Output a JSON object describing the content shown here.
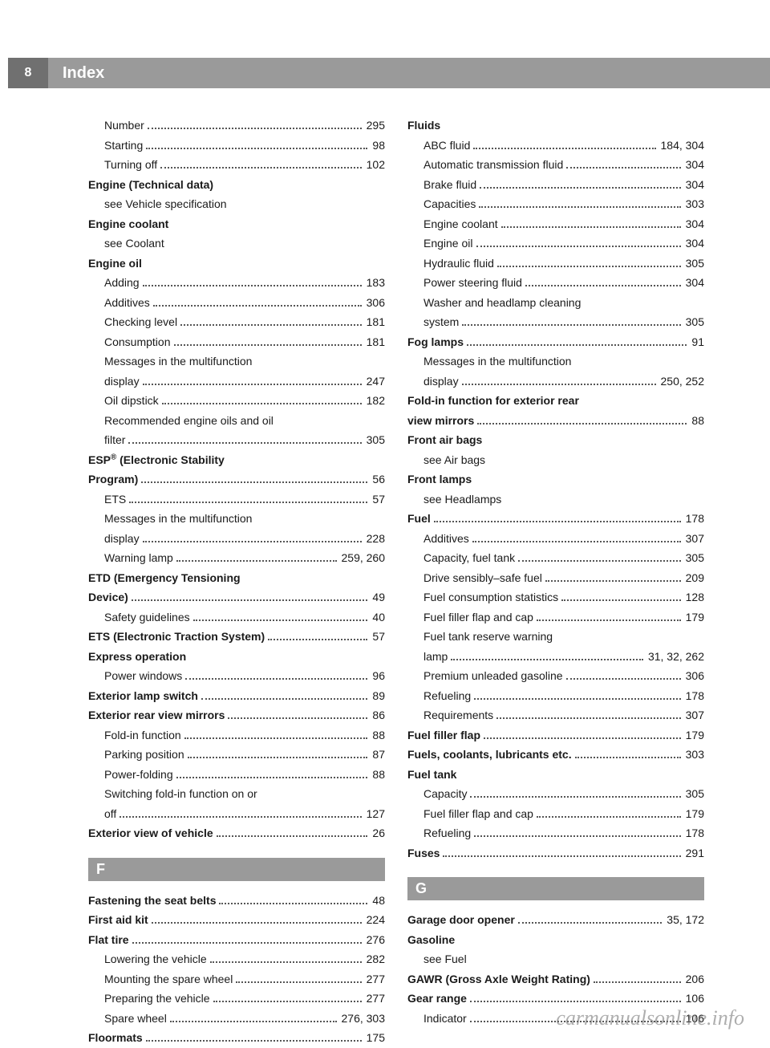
{
  "header": {
    "page_num": "8",
    "title": "Index"
  },
  "watermark": "carmanualsonline.info",
  "left_col": [
    {
      "t": "entry",
      "sub": true,
      "label": "Number",
      "page": "295"
    },
    {
      "t": "entry",
      "sub": true,
      "label": "Starting",
      "page": "98"
    },
    {
      "t": "entry",
      "sub": true,
      "label": "Turning off",
      "page": "102"
    },
    {
      "t": "header-line",
      "label": "Engine (Technical data)"
    },
    {
      "t": "see",
      "sub": true,
      "label": "see Vehicle specification"
    },
    {
      "t": "header-line",
      "label": "Engine coolant"
    },
    {
      "t": "see",
      "sub": true,
      "label": "see Coolant"
    },
    {
      "t": "header-line",
      "label": "Engine oil"
    },
    {
      "t": "entry",
      "sub": true,
      "label": "Adding",
      "page": "183"
    },
    {
      "t": "entry",
      "sub": true,
      "label": "Additives",
      "page": "306"
    },
    {
      "t": "entry",
      "sub": true,
      "label": "Checking level",
      "page": "181"
    },
    {
      "t": "entry",
      "sub": true,
      "label": "Consumption",
      "page": "181"
    },
    {
      "t": "wrap",
      "sub": true,
      "label": "Messages in the multifunction"
    },
    {
      "t": "entry",
      "sub": true,
      "label": "display",
      "page": "247"
    },
    {
      "t": "entry",
      "sub": true,
      "label": "Oil dipstick",
      "page": "182"
    },
    {
      "t": "wrap",
      "sub": true,
      "label": "Recommended engine oils and oil"
    },
    {
      "t": "entry",
      "sub": true,
      "label": "filter",
      "page": "305"
    },
    {
      "t": "header-line",
      "label_html": "ESP<span class=\"sup\">®</span> (Electronic Stability"
    },
    {
      "t": "entry",
      "bold": true,
      "label": "Program)",
      "page": "56"
    },
    {
      "t": "entry",
      "sub": true,
      "label": "ETS",
      "page": "57"
    },
    {
      "t": "wrap",
      "sub": true,
      "label": "Messages in the multifunction"
    },
    {
      "t": "entry",
      "sub": true,
      "label": "display",
      "page": "228"
    },
    {
      "t": "entry",
      "sub": true,
      "label": "Warning lamp",
      "page": "259, 260"
    },
    {
      "t": "header-line",
      "label": "ETD (Emergency Tensioning"
    },
    {
      "t": "entry",
      "bold": true,
      "label": "Device)",
      "page": "49"
    },
    {
      "t": "entry",
      "sub": true,
      "label": "Safety guidelines",
      "page": "40"
    },
    {
      "t": "entry",
      "bold": true,
      "label": "ETS (Electronic Traction System)",
      "page": "57"
    },
    {
      "t": "header-line",
      "label": "Express operation"
    },
    {
      "t": "entry",
      "sub": true,
      "label": "Power windows",
      "page": "96"
    },
    {
      "t": "entry",
      "bold": true,
      "label": "Exterior lamp switch",
      "page": "89"
    },
    {
      "t": "entry",
      "bold": true,
      "label": "Exterior rear view mirrors",
      "page": "86"
    },
    {
      "t": "entry",
      "sub": true,
      "label": "Fold-in function",
      "page": "88"
    },
    {
      "t": "entry",
      "sub": true,
      "label": "Parking position",
      "page": "87"
    },
    {
      "t": "entry",
      "sub": true,
      "label": "Power-folding",
      "page": "88"
    },
    {
      "t": "wrap",
      "sub": true,
      "label": "Switching fold-in function on or"
    },
    {
      "t": "entry",
      "sub": true,
      "label": "off",
      "page": "127"
    },
    {
      "t": "entry",
      "bold": true,
      "label": "Exterior view of vehicle",
      "page": "26"
    },
    {
      "t": "section",
      "label": "F"
    },
    {
      "t": "entry",
      "bold": true,
      "label": "Fastening the seat belts",
      "page": "48"
    },
    {
      "t": "entry",
      "bold": true,
      "label": "First aid kit",
      "page": "224"
    },
    {
      "t": "entry",
      "bold": true,
      "label": "Flat tire",
      "page": "276"
    },
    {
      "t": "entry",
      "sub": true,
      "label": "Lowering the vehicle",
      "page": "282"
    },
    {
      "t": "entry",
      "sub": true,
      "label": "Mounting the spare wheel",
      "page": "277"
    },
    {
      "t": "entry",
      "sub": true,
      "label": "Preparing the vehicle",
      "page": "277"
    },
    {
      "t": "entry",
      "sub": true,
      "label": "Spare wheel",
      "page": "276, 303"
    },
    {
      "t": "entry",
      "bold": true,
      "label": "Floormats",
      "page": "175"
    }
  ],
  "right_col": [
    {
      "t": "header-line",
      "label": "Fluids"
    },
    {
      "t": "entry",
      "sub": true,
      "label": "ABC fluid",
      "page": "184, 304"
    },
    {
      "t": "entry",
      "sub": true,
      "label": "Automatic transmission fluid",
      "page": "304"
    },
    {
      "t": "entry",
      "sub": true,
      "label": "Brake fluid",
      "page": "304"
    },
    {
      "t": "entry",
      "sub": true,
      "label": "Capacities",
      "page": "303"
    },
    {
      "t": "entry",
      "sub": true,
      "label": "Engine coolant",
      "page": "304"
    },
    {
      "t": "entry",
      "sub": true,
      "label": "Engine oil",
      "page": "304"
    },
    {
      "t": "entry",
      "sub": true,
      "label": "Hydraulic fluid",
      "page": "305"
    },
    {
      "t": "entry",
      "sub": true,
      "label": "Power steering fluid",
      "page": "304"
    },
    {
      "t": "wrap",
      "sub": true,
      "label": "Washer and headlamp cleaning"
    },
    {
      "t": "entry",
      "sub": true,
      "label": "system",
      "page": "305"
    },
    {
      "t": "entry",
      "bold": true,
      "label": "Fog lamps",
      "page": "91"
    },
    {
      "t": "wrap",
      "sub": true,
      "label": "Messages in the multifunction"
    },
    {
      "t": "entry",
      "sub": true,
      "label": "display",
      "page": "250, 252"
    },
    {
      "t": "header-line",
      "label": "Fold-in function for exterior rear"
    },
    {
      "t": "entry",
      "bold": true,
      "label": "view mirrors",
      "page": "88"
    },
    {
      "t": "header-line",
      "label": "Front air bags"
    },
    {
      "t": "see",
      "sub": true,
      "label": "see Air bags"
    },
    {
      "t": "header-line",
      "label": "Front lamps"
    },
    {
      "t": "see",
      "sub": true,
      "label": "see Headlamps"
    },
    {
      "t": "entry",
      "bold": true,
      "label": "Fuel",
      "page": "178"
    },
    {
      "t": "entry",
      "sub": true,
      "label": "Additives",
      "page": "307"
    },
    {
      "t": "entry",
      "sub": true,
      "label": "Capacity, fuel tank",
      "page": "305"
    },
    {
      "t": "entry",
      "sub": true,
      "label": "Drive sensibly–safe fuel",
      "page": "209"
    },
    {
      "t": "entry",
      "sub": true,
      "label": "Fuel consumption statistics",
      "page": "128"
    },
    {
      "t": "entry",
      "sub": true,
      "label": "Fuel filler flap and cap",
      "page": "179"
    },
    {
      "t": "wrap",
      "sub": true,
      "label": "Fuel tank reserve warning"
    },
    {
      "t": "entry",
      "sub": true,
      "label": "lamp",
      "page": "31, 32, 262"
    },
    {
      "t": "entry",
      "sub": true,
      "label": "Premium unleaded gasoline",
      "page": "306"
    },
    {
      "t": "entry",
      "sub": true,
      "label": "Refueling",
      "page": "178"
    },
    {
      "t": "entry",
      "sub": true,
      "label": "Requirements",
      "page": "307"
    },
    {
      "t": "entry",
      "bold": true,
      "label": "Fuel filler flap",
      "page": "179"
    },
    {
      "t": "entry",
      "bold": true,
      "label": "Fuels, coolants, lubricants etc.",
      "page": "303"
    },
    {
      "t": "header-line",
      "label": "Fuel tank"
    },
    {
      "t": "entry",
      "sub": true,
      "label": "Capacity",
      "page": "305"
    },
    {
      "t": "entry",
      "sub": true,
      "label": "Fuel filler flap and cap",
      "page": "179"
    },
    {
      "t": "entry",
      "sub": true,
      "label": "Refueling",
      "page": "178"
    },
    {
      "t": "entry",
      "bold": true,
      "label": "Fuses",
      "page": "291"
    },
    {
      "t": "section",
      "label": "G"
    },
    {
      "t": "entry",
      "bold": true,
      "label": "Garage door opener",
      "page": "35, 172"
    },
    {
      "t": "header-line",
      "label": "Gasoline"
    },
    {
      "t": "see",
      "sub": true,
      "label": "see Fuel"
    },
    {
      "t": "entry",
      "bold": true,
      "label": "GAWR (Gross Axle Weight Rating)",
      "page": "206"
    },
    {
      "t": "entry",
      "bold": true,
      "label": "Gear range",
      "page": "106"
    },
    {
      "t": "entry",
      "sub": true,
      "label": "Indicator",
      "page": "106"
    }
  ]
}
